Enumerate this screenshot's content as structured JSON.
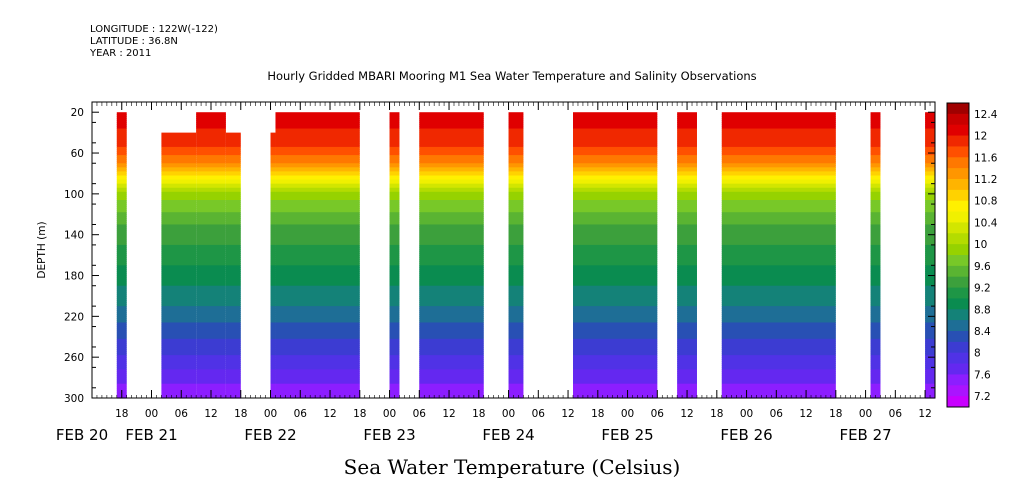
{
  "header": {
    "longitude": "LONGITUDE : 122W(-122)",
    "latitude": "LATITUDE : 36.8N",
    "year": "YEAR : 2011"
  },
  "chart_data": {
    "type": "heatmap",
    "title": "Hourly Gridded MBARI Mooring M1 Sea Water Temperature and Salinity Observations",
    "variable_label": "Sea Water Temperature (Celsius)",
    "ylabel": "DEPTH (m)",
    "ylim": [
      300,
      10
    ],
    "y_ticks": [
      20,
      60,
      100,
      140,
      180,
      220,
      260,
      300
    ],
    "x_start": "2011-02-20T12:00",
    "x_end": "2011-02-27T14:00",
    "x_tick_hours": [
      "18",
      "00",
      "06",
      "12",
      "18",
      "00",
      "06",
      "12",
      "18",
      "00",
      "06",
      "12",
      "18",
      "00",
      "06",
      "12",
      "18",
      "00",
      "06",
      "12",
      "18",
      "00",
      "06",
      "12",
      "18",
      "00",
      "06",
      "12",
      "18",
      "00",
      "06",
      "12"
    ],
    "x_tick_times": [
      "2011-02-20T18:00",
      "2011-02-21T00:00",
      "2011-02-21T06:00",
      "2011-02-21T12:00",
      "2011-02-21T18:00",
      "2011-02-22T00:00",
      "2011-02-22T06:00",
      "2011-02-22T12:00",
      "2011-02-22T18:00",
      "2011-02-23T00:00",
      "2011-02-23T06:00",
      "2011-02-23T12:00",
      "2011-02-23T18:00",
      "2011-02-24T00:00",
      "2011-02-24T06:00",
      "2011-02-24T12:00",
      "2011-02-24T18:00",
      "2011-02-25T00:00",
      "2011-02-25T06:00",
      "2011-02-25T12:00",
      "2011-02-25T18:00",
      "2011-02-26T00:00",
      "2011-02-26T06:00",
      "2011-02-26T12:00",
      "2011-02-26T18:00",
      "2011-02-27T00:00",
      "2011-02-27T06:00",
      "2011-02-27T12:00"
    ],
    "date_labels": [
      {
        "label": "FEB 20",
        "time": "2011-02-20T00:00"
      },
      {
        "label": "FEB 21",
        "time": "2011-02-21T00:00"
      },
      {
        "label": "FEB 22",
        "time": "2011-02-22T00:00"
      },
      {
        "label": "FEB 23",
        "time": "2011-02-23T00:00"
      },
      {
        "label": "FEB 24",
        "time": "2011-02-24T00:00"
      },
      {
        "label": "FEB 25",
        "time": "2011-02-25T00:00"
      },
      {
        "label": "FEB 26",
        "time": "2011-02-26T00:00"
      },
      {
        "label": "FEB 27",
        "time": "2011-02-27T00:00"
      }
    ],
    "data_segments": [
      {
        "start": "2011-02-20T17:00",
        "end": "2011-02-20T19:00",
        "top_depth": 20
      },
      {
        "start": "2011-02-21T02:00",
        "end": "2011-02-21T09:00",
        "top_depth": 40
      },
      {
        "start": "2011-02-21T09:00",
        "end": "2011-02-21T15:00",
        "top_depth": 20
      },
      {
        "start": "2011-02-21T15:00",
        "end": "2011-02-21T18:00",
        "top_depth": 40
      },
      {
        "start": "2011-02-22T00:00",
        "end": "2011-02-22T01:00",
        "top_depth": 40
      },
      {
        "start": "2011-02-22T01:00",
        "end": "2011-02-22T18:00",
        "top_depth": 20
      },
      {
        "start": "2011-02-23T00:00",
        "end": "2011-02-23T02:00",
        "top_depth": 20
      },
      {
        "start": "2011-02-23T06:00",
        "end": "2011-02-23T19:00",
        "top_depth": 20
      },
      {
        "start": "2011-02-24T00:00",
        "end": "2011-02-24T03:00",
        "top_depth": 20
      },
      {
        "start": "2011-02-24T13:00",
        "end": "2011-02-25T06:00",
        "top_depth": 20
      },
      {
        "start": "2011-02-25T10:00",
        "end": "2011-02-25T14:00",
        "top_depth": 20
      },
      {
        "start": "2011-02-25T19:00",
        "end": "2011-02-26T18:00",
        "top_depth": 20
      },
      {
        "start": "2011-02-27T01:00",
        "end": "2011-02-27T03:00",
        "top_depth": 20
      },
      {
        "start": "2011-02-27T12:00",
        "end": "2011-02-27T14:00",
        "top_depth": 20
      }
    ],
    "profile": [
      {
        "depth": 20,
        "value": 12.1
      },
      {
        "depth": 50,
        "value": 11.9
      },
      {
        "depth": 70,
        "value": 11.4
      },
      {
        "depth": 85,
        "value": 10.6
      },
      {
        "depth": 100,
        "value": 9.9
      },
      {
        "depth": 130,
        "value": 9.4
      },
      {
        "depth": 170,
        "value": 9.0
      },
      {
        "depth": 210,
        "value": 8.6
      },
      {
        "depth": 250,
        "value": 8.1
      },
      {
        "depth": 280,
        "value": 7.7
      },
      {
        "depth": 300,
        "value": 7.4
      }
    ],
    "colorbar": {
      "labels": [
        "12.4",
        "12",
        "11.6",
        "11.2",
        "10.8",
        "10.4",
        "10",
        "9.6",
        "9.2",
        "8.8",
        "8.4",
        "8",
        "7.6",
        "7.2"
      ],
      "levels": [
        {
          "min": 12.4,
          "max": 12.6,
          "color": "#a00000"
        },
        {
          "min": 12.2,
          "max": 12.4,
          "color": "#c80000"
        },
        {
          "min": 12.0,
          "max": 12.2,
          "color": "#e00000"
        },
        {
          "min": 11.8,
          "max": 12.0,
          "color": "#f02800"
        },
        {
          "min": 11.6,
          "max": 11.8,
          "color": "#ff5000"
        },
        {
          "min": 11.4,
          "max": 11.6,
          "color": "#ff7800"
        },
        {
          "min": 11.2,
          "max": 11.4,
          "color": "#ff9600"
        },
        {
          "min": 11.0,
          "max": 11.2,
          "color": "#ffb400"
        },
        {
          "min": 10.8,
          "max": 11.0,
          "color": "#ffd200"
        },
        {
          "min": 10.6,
          "max": 10.8,
          "color": "#fff000"
        },
        {
          "min": 10.4,
          "max": 10.6,
          "color": "#f0f000"
        },
        {
          "min": 10.2,
          "max": 10.4,
          "color": "#d2e600"
        },
        {
          "min": 10.0,
          "max": 10.2,
          "color": "#b4dc00"
        },
        {
          "min": 9.8,
          "max": 10.0,
          "color": "#96d200"
        },
        {
          "min": 9.6,
          "max": 9.8,
          "color": "#78c828"
        },
        {
          "min": 9.4,
          "max": 9.6,
          "color": "#5ab432"
        },
        {
          "min": 9.2,
          "max": 9.4,
          "color": "#3ca03c"
        },
        {
          "min": 9.0,
          "max": 9.2,
          "color": "#1e9646"
        },
        {
          "min": 8.8,
          "max": 9.0,
          "color": "#0a8c50"
        },
        {
          "min": 8.6,
          "max": 8.8,
          "color": "#148278"
        },
        {
          "min": 8.4,
          "max": 8.6,
          "color": "#1e6e96"
        },
        {
          "min": 8.2,
          "max": 8.4,
          "color": "#2850b4"
        },
        {
          "min": 8.0,
          "max": 8.2,
          "color": "#3c3cd2"
        },
        {
          "min": 7.8,
          "max": 8.0,
          "color": "#5032e6"
        },
        {
          "min": 7.6,
          "max": 7.8,
          "color": "#6428f0"
        },
        {
          "min": 7.4,
          "max": 7.6,
          "color": "#8c1eff"
        },
        {
          "min": 7.2,
          "max": 7.4,
          "color": "#aa14ff"
        },
        {
          "min": 7.0,
          "max": 7.2,
          "color": "#c800ff"
        }
      ]
    }
  }
}
